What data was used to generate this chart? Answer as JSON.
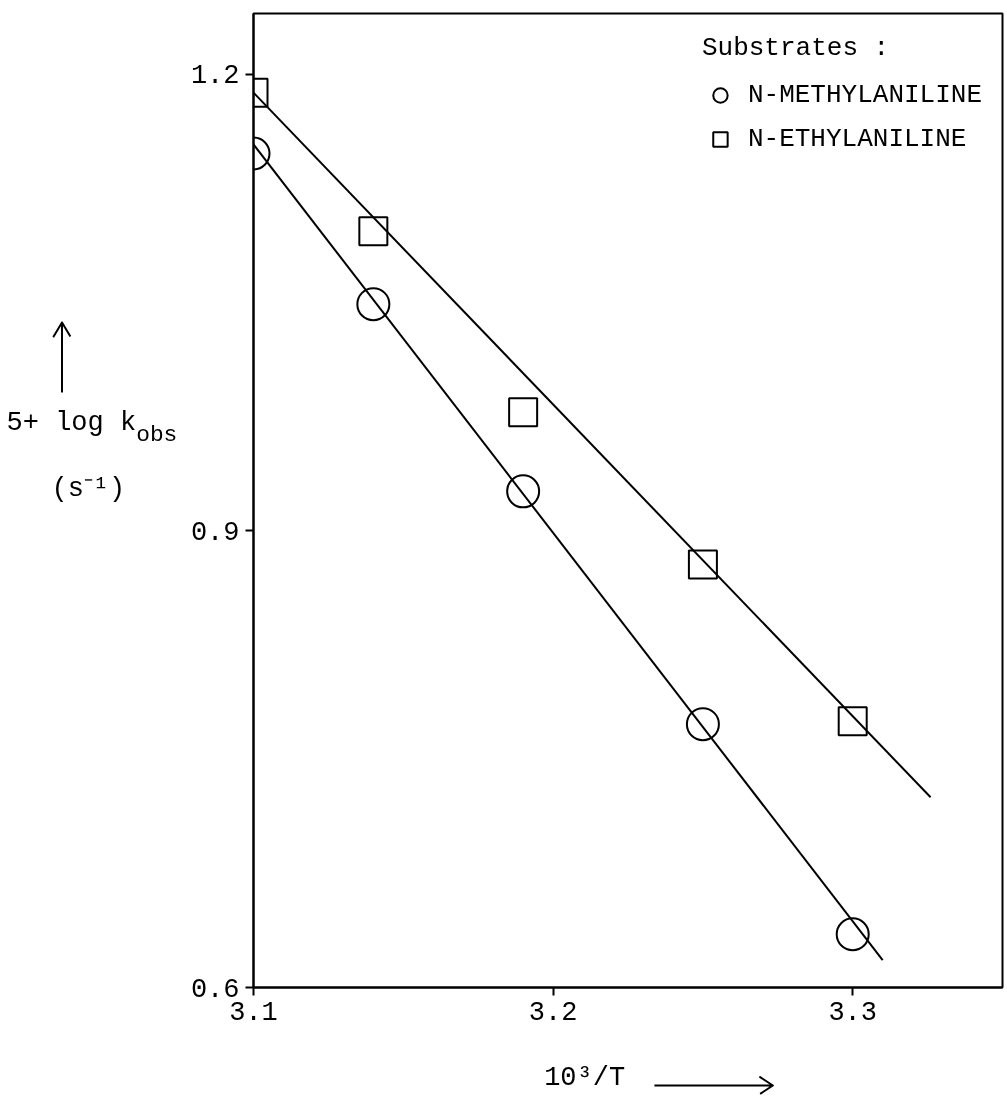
{
  "chart_data": {
    "type": "scatter",
    "xlabel": "10³/T",
    "ylabel": "5+ log k$_{obs}$ (s⁻¹)",
    "legend_title": "Substrates :",
    "legend": "top right",
    "grid": false,
    "xlim": [
      3.1,
      3.35
    ],
    "ylim": [
      0.6,
      1.24
    ],
    "xticks": [
      3.1,
      3.2,
      3.3
    ],
    "yticks": [
      0.6,
      0.9,
      1.2
    ],
    "series": [
      {
        "name": "N-METHYLANILINE",
        "color": "#000000",
        "marker": "circle",
        "x": [
          3.1,
          3.14,
          3.19,
          3.25,
          3.3
        ],
        "values": [
          1.148,
          1.049,
          0.926,
          0.773,
          0.635
        ]
      },
      {
        "name": "N-ETHYLANILINE",
        "color": "#000000",
        "marker": "square",
        "x": [
          3.1,
          3.14,
          3.19,
          3.25,
          3.3
        ],
        "values": [
          1.188,
          1.097,
          0.978,
          0.878,
          0.775
        ]
      },
      {
        "type": "line",
        "color": "#000000",
        "line_style": "solid",
        "x": [
          3.1,
          3.31
        ],
        "values": [
          1.154,
          0.618
        ]
      },
      {
        "type": "line",
        "color": "#000000",
        "line_style": "solid",
        "x": [
          3.1,
          3.326
        ],
        "values": [
          1.188,
          0.725
        ]
      }
    ]
  }
}
